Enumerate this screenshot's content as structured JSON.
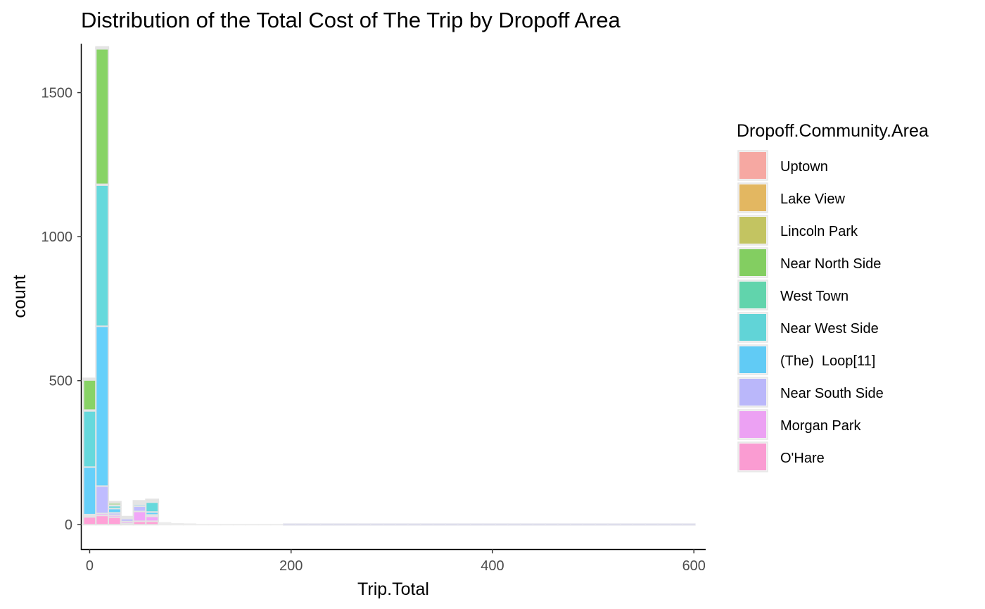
{
  "chart_data": {
    "type": "bar",
    "subtype": "stacked histogram",
    "title": "Distribution of the Total Cost of The Trip by Dropoff Area",
    "xlabel": "Trip.Total",
    "ylabel": "count",
    "xlim": [
      -8,
      611
    ],
    "ylim": [
      -85,
      1670
    ],
    "x_ticks": [
      0,
      200,
      400,
      600
    ],
    "y_ticks": [
      0,
      500,
      1000,
      1500
    ],
    "grid": false,
    "legend": {
      "title": "Dropoff.Community.Area",
      "position": "right"
    },
    "bin_width": 12.4,
    "bins_x": [
      0,
      12.4,
      24.8,
      37.2,
      49.6,
      62,
      74.4,
      86.8,
      99.2,
      111.6,
      124,
      136.4,
      148.8,
      161.2,
      173.6,
      186
    ],
    "series": [
      {
        "name": "Uptown",
        "color": "#F8766D",
        "values": [
          2,
          3,
          0,
          0,
          1,
          0,
          0,
          0,
          0,
          0,
          0,
          0,
          0,
          0,
          0,
          0
        ]
      },
      {
        "name": "Lake View",
        "color": "#D89000",
        "values": [
          2,
          2,
          0,
          0,
          1,
          0,
          0,
          0,
          0,
          0,
          0,
          0,
          0,
          0,
          0,
          0
        ]
      },
      {
        "name": "Lincoln Park",
        "color": "#A3A500",
        "values": [
          1,
          2,
          5,
          0,
          4,
          5,
          0,
          0,
          0,
          0,
          0,
          0,
          0,
          0,
          0,
          0
        ]
      },
      {
        "name": "Near North Side",
        "color": "#39B600",
        "values": [
          105,
          470,
          7,
          1,
          2,
          3,
          1,
          0,
          0,
          0,
          0,
          0,
          0,
          0,
          0,
          0
        ]
      },
      {
        "name": "West Town",
        "color": "#00BF7D",
        "values": [
          3,
          3,
          2,
          0,
          1,
          1,
          0,
          0,
          0,
          0,
          0,
          0,
          0,
          0,
          0,
          0
        ]
      },
      {
        "name": "Near West Side",
        "color": "#00BFC4",
        "values": [
          195,
          490,
          10,
          3,
          4,
          35,
          1,
          1,
          0,
          0,
          0,
          0,
          0,
          0,
          0,
          0
        ]
      },
      {
        "name": "(The)  Loop[11]",
        "color": "#00B0F6",
        "values": [
          165,
          555,
          15,
          3,
          6,
          10,
          1,
          0,
          0,
          0,
          0,
          0,
          0,
          0,
          0,
          0
        ]
      },
      {
        "name": "Near South Side",
        "color": "#9590FF",
        "values": [
          5,
          95,
          8,
          10,
          18,
          5,
          1,
          1,
          1,
          0,
          0,
          0,
          0,
          0,
          0,
          0
        ]
      },
      {
        "name": "Morgan Park",
        "color": "#E76BF3",
        "values": [
          3,
          7,
          7,
          7,
          34,
          17,
          2,
          1,
          1,
          0,
          0,
          0,
          0,
          0,
          0,
          0
        ]
      },
      {
        "name": "O'Hare",
        "color": "#FF62BC",
        "values": [
          27,
          32,
          26,
          4,
          12,
          12,
          1,
          1,
          1,
          1,
          1,
          1,
          1,
          1,
          1,
          1
        ]
      }
    ]
  }
}
